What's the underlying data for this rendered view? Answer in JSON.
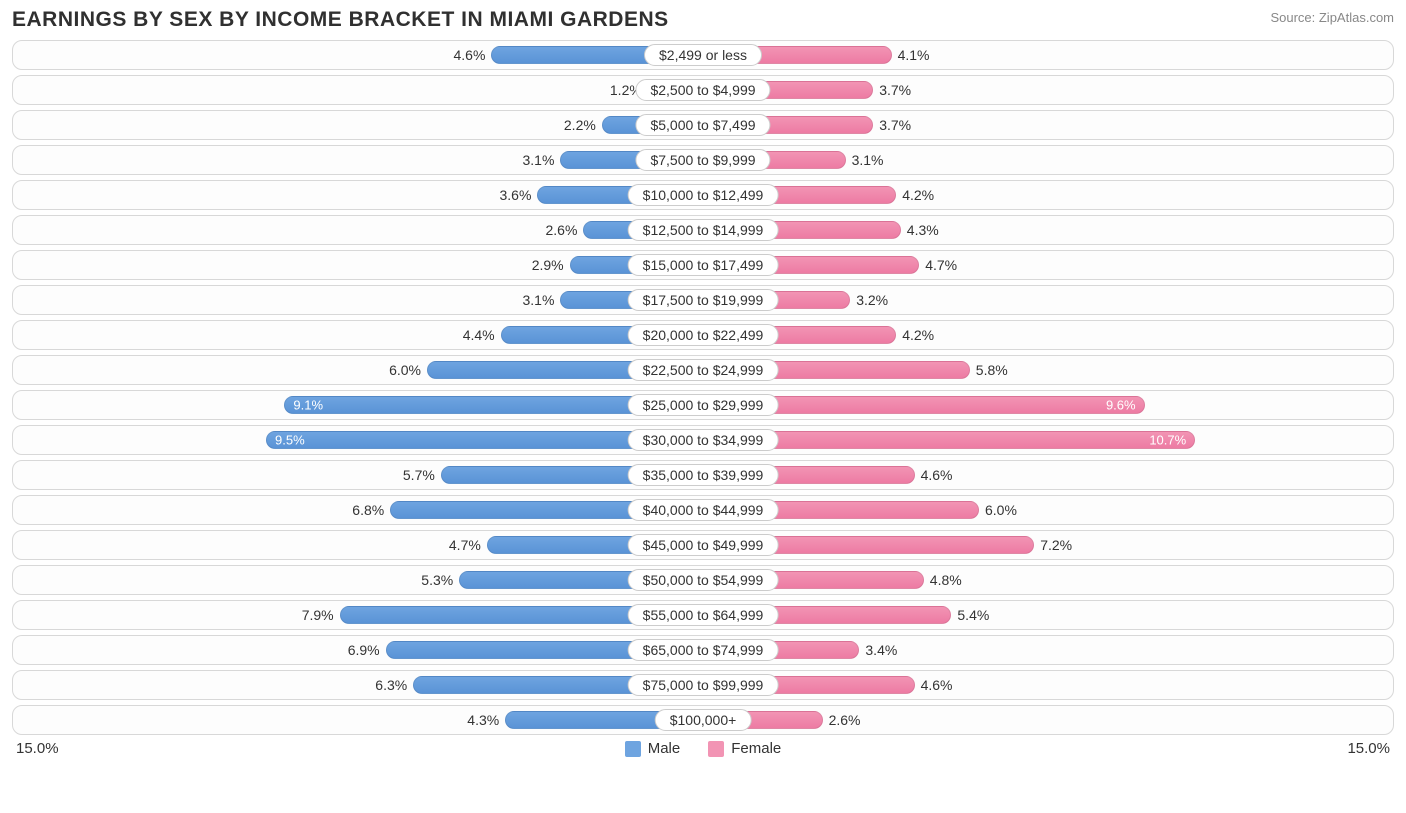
{
  "title": "EARNINGS BY SEX BY INCOME BRACKET IN MIAMI GARDENS",
  "source": "Source: ZipAtlas.com",
  "axis_max_label": "15.0%",
  "axis_max_value": 15.0,
  "legend": {
    "male": "Male",
    "female": "Female"
  },
  "colors": {
    "male_bar": "#6ea4e0",
    "male_bar_dark": "#5a93d6",
    "female_bar": "#f294b4",
    "female_bar_dark": "#ed7ba3",
    "row_border": "#d8d8d8",
    "text": "#333333",
    "title_text": "#303030",
    "source_text": "#888888",
    "background": "#ffffff"
  },
  "inside_threshold": 9.0,
  "rows": [
    {
      "label": "$2,499 or less",
      "male": 4.6,
      "female": 4.1
    },
    {
      "label": "$2,500 to $4,999",
      "male": 1.2,
      "female": 3.7
    },
    {
      "label": "$5,000 to $7,499",
      "male": 2.2,
      "female": 3.7
    },
    {
      "label": "$7,500 to $9,999",
      "male": 3.1,
      "female": 3.1
    },
    {
      "label": "$10,000 to $12,499",
      "male": 3.6,
      "female": 4.2
    },
    {
      "label": "$12,500 to $14,999",
      "male": 2.6,
      "female": 4.3
    },
    {
      "label": "$15,000 to $17,499",
      "male": 2.9,
      "female": 4.7
    },
    {
      "label": "$17,500 to $19,999",
      "male": 3.1,
      "female": 3.2
    },
    {
      "label": "$20,000 to $22,499",
      "male": 4.4,
      "female": 4.2
    },
    {
      "label": "$22,500 to $24,999",
      "male": 6.0,
      "female": 5.8
    },
    {
      "label": "$25,000 to $29,999",
      "male": 9.1,
      "female": 9.6
    },
    {
      "label": "$30,000 to $34,999",
      "male": 9.5,
      "female": 10.7
    },
    {
      "label": "$35,000 to $39,999",
      "male": 5.7,
      "female": 4.6
    },
    {
      "label": "$40,000 to $44,999",
      "male": 6.8,
      "female": 6.0
    },
    {
      "label": "$45,000 to $49,999",
      "male": 4.7,
      "female": 7.2
    },
    {
      "label": "$50,000 to $54,999",
      "male": 5.3,
      "female": 4.8
    },
    {
      "label": "$55,000 to $64,999",
      "male": 7.9,
      "female": 5.4
    },
    {
      "label": "$65,000 to $74,999",
      "male": 6.9,
      "female": 3.4
    },
    {
      "label": "$75,000 to $99,999",
      "male": 6.3,
      "female": 4.6
    },
    {
      "label": "$100,000+",
      "male": 4.3,
      "female": 2.6
    }
  ]
}
